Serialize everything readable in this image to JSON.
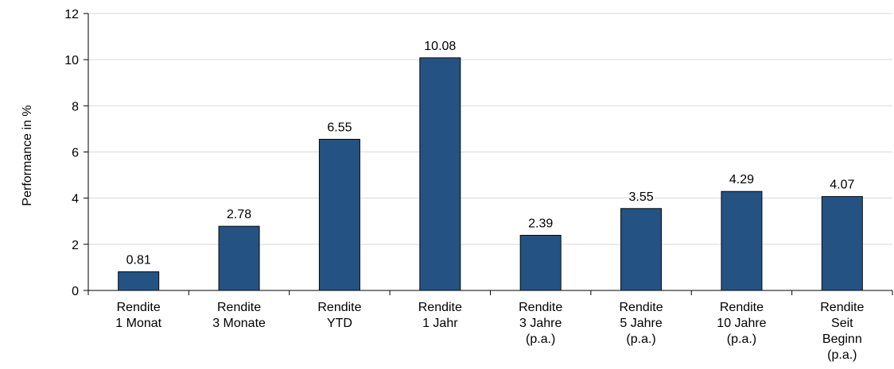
{
  "chart_data": {
    "type": "bar",
    "title": "",
    "ylabel": "Performance in %",
    "xlabel": "",
    "ylim": [
      0,
      12
    ],
    "yticks": [
      "0",
      "2",
      "4",
      "6",
      "8",
      "10",
      "12"
    ],
    "grid": true,
    "categories": [
      [
        "Rendite",
        "1 Monat"
      ],
      [
        "Rendite",
        "3 Monate"
      ],
      [
        "Rendite",
        "YTD"
      ],
      [
        "Rendite",
        "1 Jahr"
      ],
      [
        "Rendite",
        "3 Jahre",
        "(p.a.)"
      ],
      [
        "Rendite",
        "5 Jahre",
        "(p.a.)"
      ],
      [
        "Rendite",
        "10 Jahre",
        "(p.a.)"
      ],
      [
        "Rendite",
        "Seit",
        "Beginn",
        "(p.a.)"
      ]
    ],
    "values": [
      0.81,
      2.78,
      6.55,
      10.08,
      2.39,
      3.55,
      4.29,
      4.07
    ],
    "value_labels": [
      "0.81",
      "2.78",
      "6.55",
      "10.08",
      "2.39",
      "3.55",
      "4.29",
      "4.07"
    ],
    "colors": {
      "bar_fill": "#245283",
      "bar_stroke": "#0a0a0a",
      "grid": "#d9d9d9",
      "axis": "#000000"
    }
  }
}
